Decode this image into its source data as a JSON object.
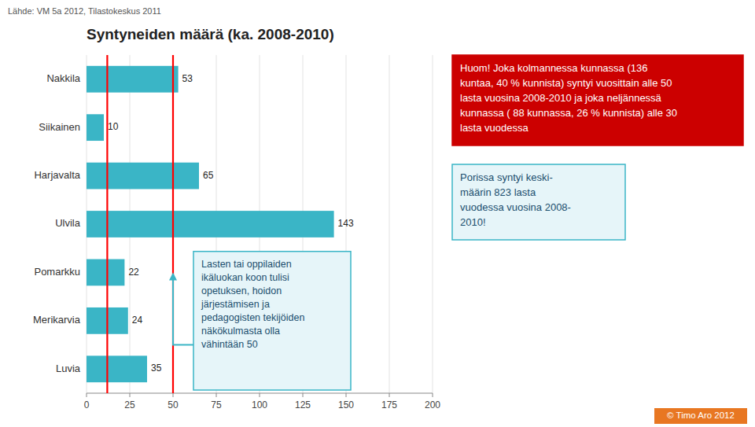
{
  "chart_data": {
    "type": "bar",
    "orientation": "horizontal",
    "title": "Syntyneiden määrä (ka. 2008-2010)",
    "source": "Lähde: VM 5a 2012, Tilastokeskus 2011",
    "credit": "© Timo Aro 2012",
    "categories": [
      "Nakkila",
      "Siikainen",
      "Harjavalta",
      "Ulvila",
      "Pomarkku",
      "Merikarvia",
      "Luvia"
    ],
    "values": [
      53,
      10,
      65,
      143,
      22,
      24,
      35
    ],
    "color": "#3ab5c6",
    "xlim": [
      0,
      200
    ],
    "xticks": [
      0,
      25,
      50,
      75,
      100,
      125,
      150,
      175,
      200
    ],
    "grid": true,
    "data_labels": true,
    "reference_lines": [
      {
        "value": 12,
        "color": "#ff0000"
      },
      {
        "value": 50,
        "color": "#ff0000"
      }
    ],
    "annotations": [
      {
        "text": "Huom! Joka kolmannessa kunnassa (136\nkuntaa, 40 % kunnista) syntyi vuosittain alle 50\nlasta vuosina 2008-2010 ja joka neljännessä\nkunnassa ( 88 kunnassa, 26 % kunnista) alle 30\nlasta vuodessa",
        "color": "#cc0000"
      },
      {
        "text": "Lasten tai oppilaiden\nikäluokan koon tulisi\nopetuksen, hoidon\njärjestämisen ja\npedagogisten tekijöiden\nnäkökulmasta olla\nvähintään 50",
        "color": "#3ab5c6",
        "x": 50,
        "category": "Pomarkku"
      },
      {
        "text": "Porissa syntyi keski-\nmäärin 823 lasta\nvuodessa vuosina 2008-\n2010!",
        "color": "#3ab5c6"
      }
    ]
  }
}
